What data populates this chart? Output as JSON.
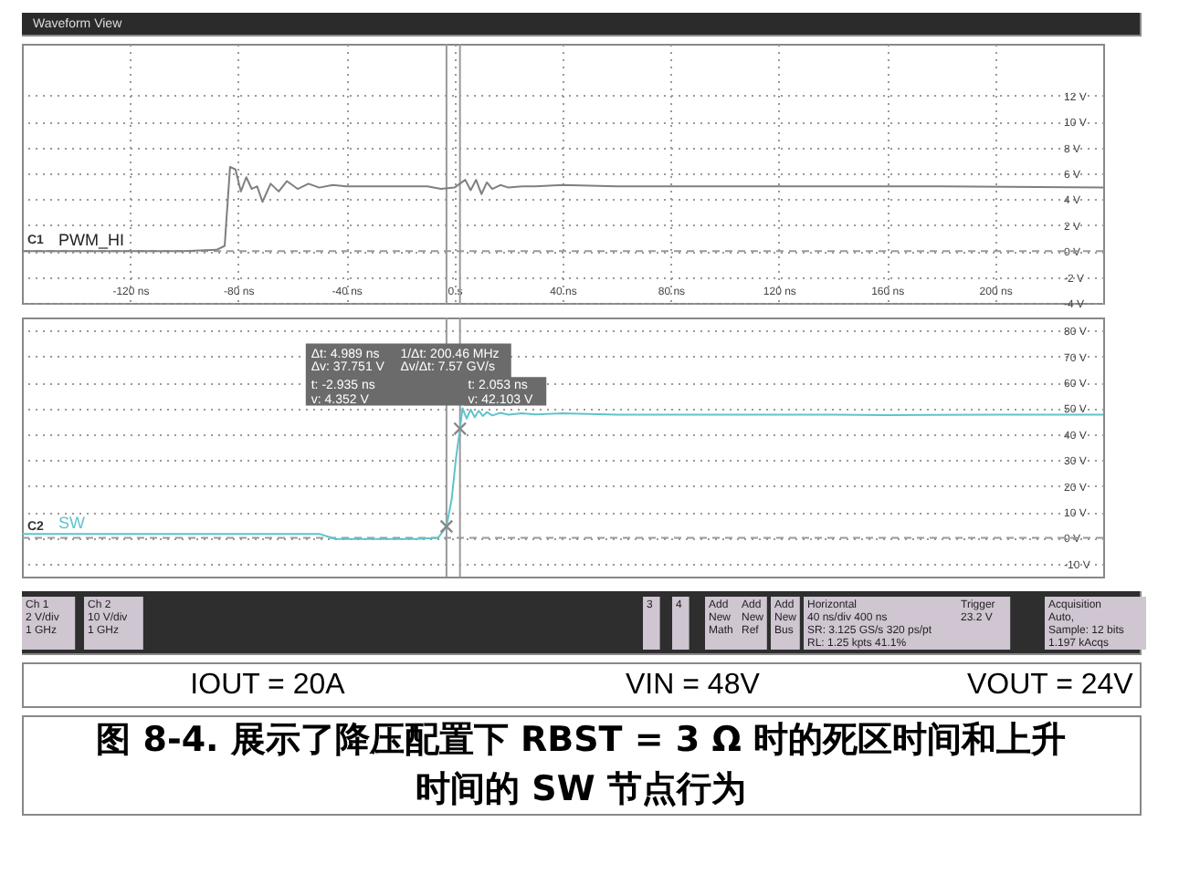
{
  "chart_data": [
    {
      "type": "line",
      "title": "Waveform View",
      "x": [
        -160,
        -100,
        -88,
        -85,
        -83,
        -81,
        -79,
        -77,
        -75,
        -73,
        -71,
        -68,
        -65,
        -62,
        -58,
        -54,
        -50,
        -45,
        -40,
        -30,
        -20,
        -10,
        -5,
        0,
        2,
        4,
        6,
        8,
        10,
        12,
        14,
        17,
        20,
        25,
        30,
        40,
        60,
        100,
        140,
        180,
        240
      ],
      "series": [
        {
          "name": "PWM_HI",
          "color": "#7f7f7f",
          "values": [
            0,
            0,
            0.1,
            0.4,
            6.5,
            6.3,
            4.6,
            5.7,
            4.8,
            5.0,
            3.8,
            5.2,
            4.6,
            5.4,
            4.8,
            5.2,
            4.9,
            5.1,
            5.0,
            5.0,
            5.0,
            5.0,
            4.8,
            4.9,
            5.2,
            5.5,
            4.7,
            5.5,
            4.4,
            5.3,
            4.8,
            5.1,
            4.9,
            5.0,
            5.0,
            5.1,
            5.0,
            5.0,
            5.0,
            5.0,
            4.9
          ]
        }
      ],
      "xlim": [
        -160,
        240
      ],
      "xticks": [
        {
          "value": -120,
          "label": "-120 ns"
        },
        {
          "value": -80,
          "label": "-80 ns"
        },
        {
          "value": -40,
          "label": "-40 ns"
        },
        {
          "value": 0,
          "label": "0 s"
        },
        {
          "value": 40,
          "label": "40 ns"
        },
        {
          "value": 80,
          "label": "80 ns"
        },
        {
          "value": 120,
          "label": "120 ns"
        },
        {
          "value": 160,
          "label": "160 ns"
        },
        {
          "value": 200,
          "label": "200 ns"
        }
      ],
      "ylim": [
        -4,
        16
      ],
      "yticks": [
        {
          "value": -4,
          "label": "-4 V"
        },
        {
          "value": -2,
          "label": "-2 V"
        },
        {
          "value": 0,
          "label": "0 V"
        },
        {
          "value": 2,
          "label": "2 V"
        },
        {
          "value": 4,
          "label": "4 V"
        },
        {
          "value": 6,
          "label": "6 V"
        },
        {
          "value": 8,
          "label": "8 V"
        },
        {
          "value": 10,
          "label": "10 V"
        },
        {
          "value": 12,
          "label": "12 V"
        }
      ],
      "grid": true,
      "ref_lines": [
        {
          "axis": "x",
          "value": -2.935,
          "color": "#9a9a9a"
        },
        {
          "axis": "x",
          "value": 2.053,
          "color": "#9a9a9a"
        },
        {
          "axis": "y",
          "value": 0,
          "color": "#9a9a9a",
          "line_style": "dashed"
        }
      ],
      "annotations": [
        "C1"
      ]
    },
    {
      "type": "line",
      "title": "图 8-4. 展示了降压配置下 RBST = 3 Ω 时的死区时间和上升时间的 SW 节点行为",
      "x": [
        -160,
        -100,
        -60,
        -50,
        -47,
        -44,
        -30,
        -15,
        -6,
        -2.935,
        -1,
        0.5,
        2.053,
        3,
        4.5,
        6,
        7.5,
        9,
        10.5,
        12,
        14,
        17,
        20,
        25,
        30,
        40,
        60,
        80,
        100,
        120,
        140,
        160,
        200,
        240
      ],
      "series": [
        {
          "name": "SW",
          "color": "#5ec4cc",
          "values": [
            1.5,
            1.5,
            1.5,
            1.5,
            0.5,
            -0.5,
            -0.5,
            -0.5,
            0,
            4.352,
            15,
            30,
            42.103,
            50,
            46,
            49.5,
            46.5,
            49,
            47,
            48.5,
            47.2,
            48.2,
            47.5,
            48,
            47.6,
            48,
            47.5,
            47.5,
            47.5,
            47.5,
            47.5,
            47.3,
            47.5,
            47.5
          ]
        },
        {
          "type": "scatter",
          "color": "#888888",
          "marker": "cross",
          "x": [
            -2.935,
            2.053
          ],
          "values": [
            4.352,
            42.103
          ]
        }
      ],
      "xlim": [
        -160,
        240
      ],
      "ylim": [
        -15,
        85
      ],
      "yticks": [
        {
          "value": -10,
          "label": "-10 V"
        },
        {
          "value": 0,
          "label": "0 V"
        },
        {
          "value": 10,
          "label": "10 V"
        },
        {
          "value": 20,
          "label": "20 V"
        },
        {
          "value": 30,
          "label": "30 V"
        },
        {
          "value": 40,
          "label": "40 V"
        },
        {
          "value": 50,
          "label": "50 V"
        },
        {
          "value": 60,
          "label": "60 V"
        },
        {
          "value": 70,
          "label": "70 V"
        },
        {
          "value": 80,
          "label": "80 V"
        }
      ],
      "tick_labels": "y",
      "grid": true,
      "ref_lines": [
        {
          "axis": "x",
          "value": -2.935,
          "color": "#9a9a9a"
        },
        {
          "axis": "x",
          "value": 2.053,
          "color": "#9a9a9a"
        },
        {
          "axis": "y",
          "value": 0,
          "color": "#9a9a9a",
          "line_style": "dashed"
        }
      ],
      "annotations": [
        "Δt: 4.989 ns",
        "1/Δt: 200.46 MHz",
        "Δv: 37.751 V",
        "Δv/Δt: 7.57 GV/s",
        "t: -2.935 ns\nv: 4.352 V",
        "t: 2.053 ns\nv: 42.103 V",
        "C2",
        "Ch 1\n2 V/div\n1 GHz",
        "Ch 2\n10 V/div\n1 GHz",
        "3",
        "4",
        "Add\nNew\nMath",
        "Add\nNew\nRef",
        "Add\nNew\nBus",
        "Horizontal\n40 ns/div   400 ns\nSR: 3.125 GS/s   320 ps/pt\nRL: 1.25 kpts   41.1%",
        "Trigger\n23.2 V",
        "Acquisition\nAuto,\nSample: 12 bits\n1.197 kAcqs",
        "IOUT = 20A",
        "VIN = 48V",
        "VOUT = 24V"
      ]
    }
  ]
}
